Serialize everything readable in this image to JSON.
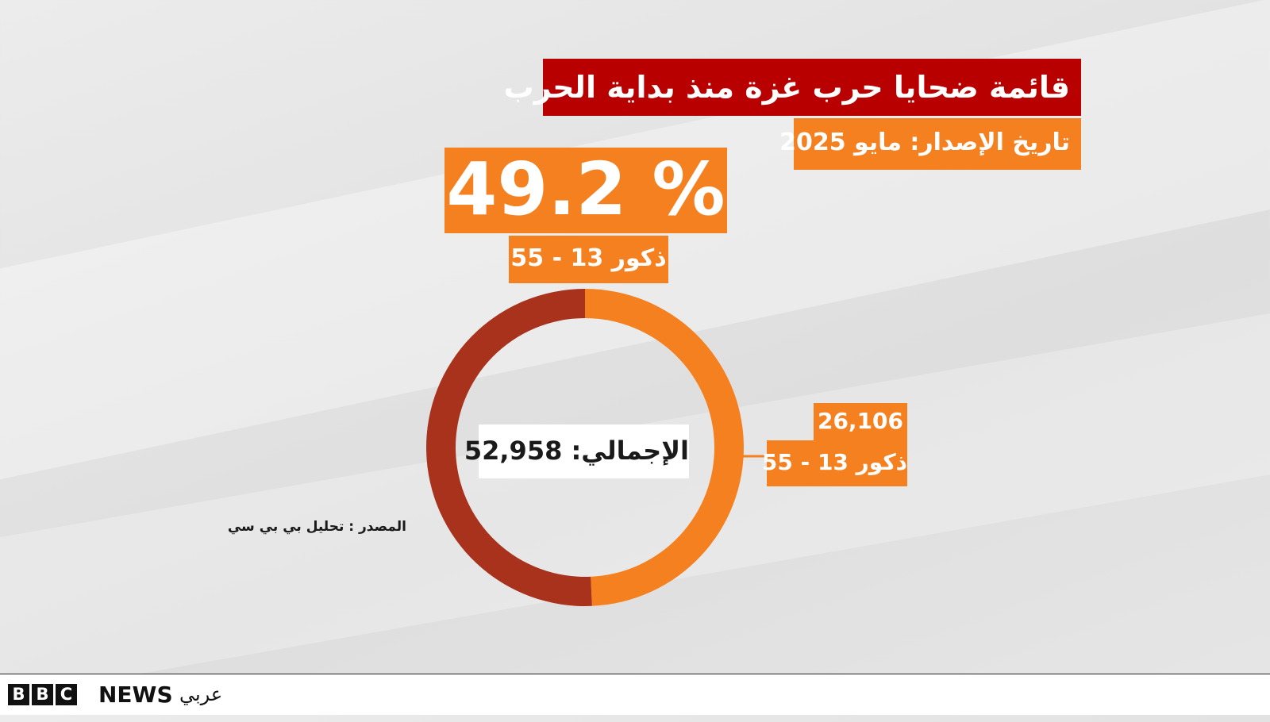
{
  "header": {
    "title": "قائمة ضحايا حرب غزة منذ بداية الحرب",
    "release_date": "تاريخ الإصدار: مايو 2025"
  },
  "highlight": {
    "percent_text": "% 49.2",
    "label": "ذكور 13 - 55"
  },
  "callout": {
    "value": "26,106",
    "label": "ذكور 13 - 55"
  },
  "total_label": "الإجمالي: 52,958",
  "source": "المصدر : تحليل بي بي سي",
  "footer": {
    "brand_letters": [
      "B",
      "B",
      "C"
    ],
    "news": "NEWS",
    "language": "عربي"
  },
  "colors": {
    "primary_segment": "#f5801f",
    "other_segment": "#a8321c",
    "title_bg": "#b80000"
  },
  "chart_data": {
    "type": "pie",
    "total": 52958,
    "labels": [
      "ذكور 13 - 55",
      ""
    ],
    "values": [
      26106,
      26852
    ],
    "percent": [
      49.2,
      50.8
    ]
  }
}
